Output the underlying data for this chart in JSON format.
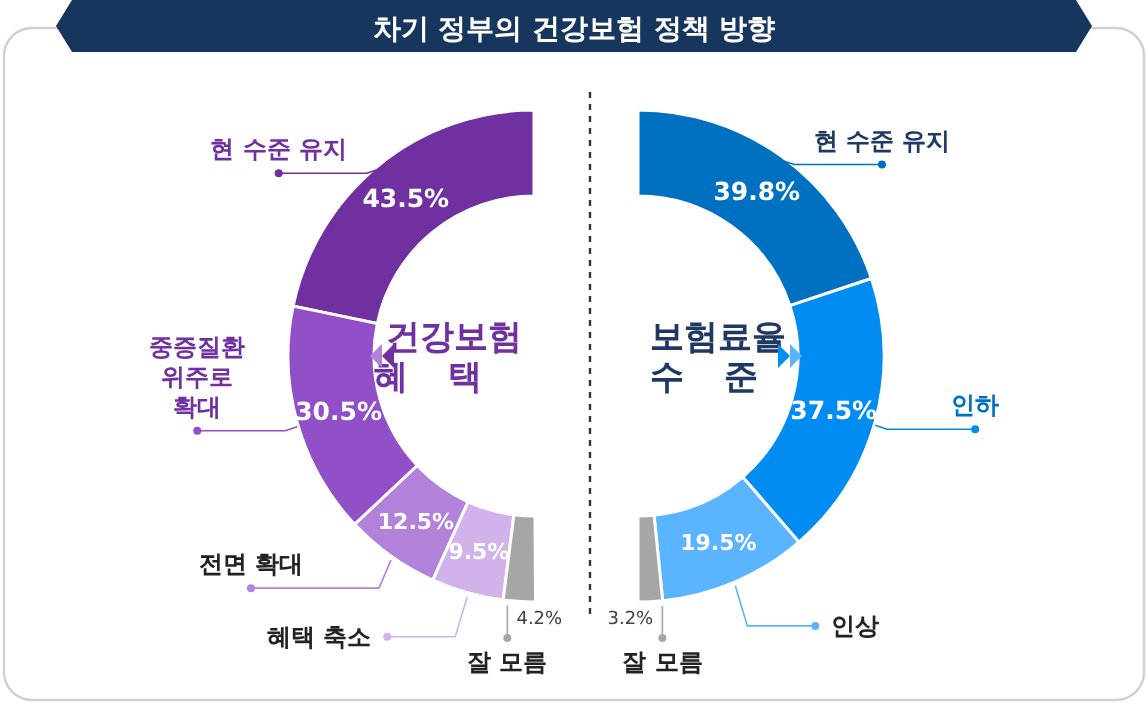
{
  "chart_data": [
    {
      "type": "donut",
      "title": "건강보험 혜택",
      "annotations": [
        "차기 정부의 건강보험 정책 방향"
      ],
      "categories": [
        "현 수준 유지",
        "중증질환 위주로 확대",
        "전면 확대",
        "혜택 축소",
        "잘 모름"
      ],
      "values": [
        43.5,
        30.5,
        12.5,
        9.5,
        4.2
      ],
      "colors": [
        "#7030a0",
        "#9150c8",
        "#b282da",
        "#d2b2ea",
        "#a6a6a6"
      ],
      "value_labels": [
        "43.5%",
        "30.5%",
        "12.5%",
        "9.5%",
        "4.2%"
      ],
      "legend": "left"
    },
    {
      "type": "donut",
      "title": "보험료율 수준",
      "categories": [
        "현 수준 유지",
        "인하",
        "인상",
        "잘 모름"
      ],
      "values": [
        39.8,
        37.5,
        19.5,
        3.2
      ],
      "colors": [
        "#0070c0",
        "#008cf0",
        "#5ab4ff",
        "#a6a6a6"
      ],
      "value_labels": [
        "39.8%",
        "37.5%",
        "19.5%",
        "3.2%"
      ],
      "legend": "right"
    }
  ]
}
